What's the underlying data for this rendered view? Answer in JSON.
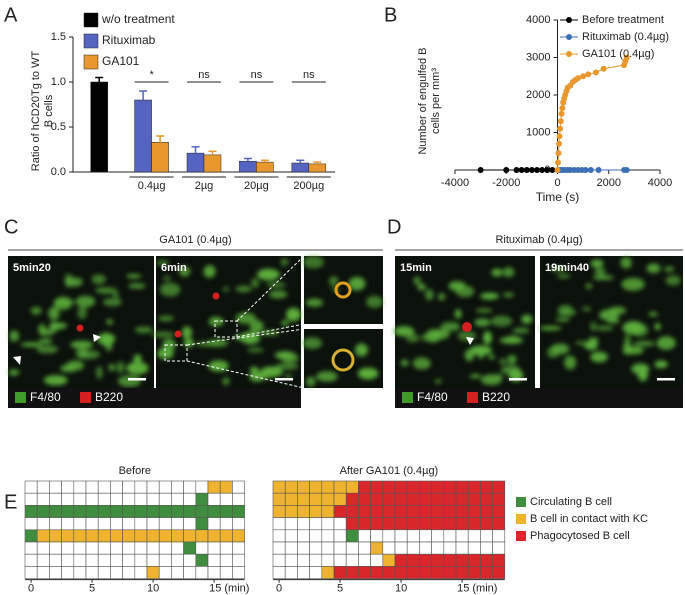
{
  "panel_labels": [
    "A",
    "B",
    "C",
    "D",
    "E"
  ],
  "chart_data": [
    {
      "type": "bar",
      "y_label": "Ratio of hCD20Tg to WT B cells",
      "categories": [
        null,
        "0.4µg",
        "2µg",
        "20µg",
        "200µg"
      ],
      "series": [
        {
          "name": "w/o treatment",
          "color": "#000000",
          "values": [
            1.0,
            null,
            null,
            null,
            null
          ],
          "errors": [
            0.05,
            null,
            null,
            null,
            null
          ]
        },
        {
          "name": "Rituximab",
          "color": "#5563c1",
          "values": [
            null,
            0.8,
            0.21,
            0.12,
            0.1
          ],
          "errors": [
            null,
            0.1,
            0.07,
            0.03,
            0.03
          ]
        },
        {
          "name": "GA101",
          "color": "#e8982e",
          "values": [
            null,
            0.33,
            0.19,
            0.11,
            0.09
          ],
          "errors": [
            null,
            0.07,
            0.04,
            0.02,
            0.02
          ]
        }
      ],
      "significance": [
        null,
        "*",
        "ns",
        "ns",
        "ns"
      ],
      "ylim": [
        0,
        1.5
      ],
      "yticks": [
        {
          "value": 0,
          "label": "0.0"
        },
        {
          "value": 0.5,
          "label": "0.5"
        },
        {
          "value": 1,
          "label": "1.0"
        },
        {
          "value": 1.5,
          "label": "1.5"
        }
      ],
      "legend": "top-left"
    },
    {
      "type": "scatter",
      "x_label": "Time (s)",
      "y_label": "Number of engulfed B cells per mm³",
      "series": [
        {
          "name": "Before treatment",
          "color": "#000000",
          "x": [
            -3000,
            -2000,
            -1600,
            -1400,
            -1200,
            -1000,
            -800,
            -600,
            -400,
            -200
          ],
          "values": [
            0,
            0,
            0,
            0,
            0,
            0,
            0,
            0,
            0,
            0
          ]
        },
        {
          "name": "Rituximab (0.4µg)",
          "color": "#3d6fb6",
          "x": [
            50,
            120,
            200,
            300,
            400,
            500,
            650,
            800,
            950,
            1100,
            1300,
            1600,
            2600,
            2700
          ],
          "values": [
            0,
            0,
            0,
            0,
            0,
            0,
            0,
            0,
            0,
            0,
            0,
            0,
            0,
            0
          ]
        },
        {
          "name": "GA101 (0.4µg)",
          "color": "#e8982e",
          "x": [
            0,
            20,
            40,
            60,
            80,
            100,
            130,
            160,
            190,
            220,
            260,
            300,
            350,
            400,
            500,
            600,
            700,
            800,
            1000,
            1200,
            1500,
            1800,
            2600,
            2650,
            2700
          ],
          "values": [
            0,
            200,
            450,
            700,
            900,
            1100,
            1300,
            1500,
            1650,
            1800,
            1900,
            2000,
            2100,
            2200,
            2250,
            2350,
            2400,
            2450,
            2500,
            2550,
            2600,
            2700,
            2800,
            2900,
            3000
          ]
        }
      ],
      "xlim": [
        -4000,
        4000
      ],
      "xticks": [
        -4000,
        -2000,
        0,
        2000,
        4000
      ],
      "ylim": [
        0,
        4000
      ],
      "yticks": [
        0,
        1000,
        2000,
        3000,
        4000
      ],
      "lines": true,
      "legend": "top-right"
    },
    {
      "type": "heatmap",
      "title": "Before",
      "cells": [
        [
          0,
          0,
          0,
          0,
          0,
          0,
          0,
          0,
          0,
          0,
          0,
          0,
          0,
          0,
          0,
          2,
          2,
          0
        ],
        [
          0,
          0,
          0,
          0,
          0,
          0,
          0,
          0,
          0,
          0,
          0,
          0,
          0,
          0,
          1,
          0,
          0,
          0
        ],
        [
          1,
          1,
          1,
          1,
          1,
          1,
          1,
          1,
          1,
          1,
          1,
          1,
          1,
          1,
          1,
          1,
          1,
          1
        ],
        [
          0,
          0,
          0,
          0,
          0,
          0,
          0,
          0,
          0,
          0,
          0,
          0,
          0,
          0,
          1,
          0,
          0,
          0
        ],
        [
          1,
          2,
          2,
          2,
          2,
          2,
          2,
          2,
          2,
          2,
          2,
          2,
          2,
          2,
          2,
          2,
          2,
          2
        ],
        [
          0,
          0,
          0,
          0,
          0,
          0,
          0,
          0,
          0,
          0,
          0,
          0,
          0,
          1,
          0,
          0,
          0,
          0
        ],
        [
          0,
          0,
          0,
          0,
          0,
          0,
          0,
          0,
          0,
          0,
          0,
          0,
          0,
          0,
          1,
          0,
          0,
          0
        ],
        [
          0,
          0,
          0,
          0,
          0,
          0,
          0,
          0,
          0,
          0,
          2,
          0,
          0,
          0,
          0,
          0,
          0,
          0
        ]
      ],
      "xticks": [
        0,
        5,
        10,
        {
          "value": 15,
          "label": "15 (min)"
        }
      ]
    },
    {
      "type": "heatmap",
      "title": "After GA101 (0.4µg)",
      "cells": [
        [
          2,
          2,
          2,
          2,
          2,
          2,
          2,
          3,
          3,
          3,
          3,
          3,
          3,
          3,
          3,
          3,
          3,
          3,
          3
        ],
        [
          2,
          2,
          2,
          2,
          2,
          2,
          3,
          3,
          3,
          3,
          3,
          3,
          3,
          3,
          3,
          3,
          3,
          3,
          3
        ],
        [
          2,
          2,
          2,
          2,
          2,
          3,
          3,
          3,
          3,
          3,
          3,
          3,
          3,
          3,
          3,
          3,
          3,
          3,
          3
        ],
        [
          0,
          0,
          0,
          0,
          0,
          0,
          3,
          3,
          3,
          3,
          3,
          3,
          3,
          3,
          3,
          3,
          3,
          3,
          3
        ],
        [
          0,
          0,
          0,
          0,
          0,
          0,
          1,
          0,
          0,
          0,
          0,
          0,
          0,
          0,
          0,
          0,
          0,
          0,
          0
        ],
        [
          0,
          0,
          0,
          0,
          0,
          0,
          0,
          0,
          2,
          0,
          0,
          0,
          0,
          0,
          0,
          0,
          0,
          0,
          0
        ],
        [
          0,
          0,
          0,
          0,
          0,
          0,
          0,
          0,
          0,
          2,
          3,
          3,
          3,
          3,
          3,
          3,
          3,
          3,
          3
        ],
        [
          0,
          0,
          0,
          0,
          2,
          3,
          3,
          3,
          3,
          3,
          3,
          3,
          3,
          3,
          3,
          3,
          3,
          3,
          3
        ]
      ],
      "xticks": [
        0,
        5,
        10,
        {
          "value": 15,
          "label": "15 (min)"
        }
      ]
    }
  ],
  "cell_states": [
    {
      "name": "Circulating B cell",
      "color": "#3f8e3f"
    },
    {
      "name": "B cell in contact with KC",
      "color": "#f0b330"
    },
    {
      "name": "Phagocytosed B cell",
      "color": "#d8262a"
    }
  ],
  "images": {
    "C": {
      "title": "GA101 (0.4µg)",
      "frames": [
        "5min20",
        "6min"
      ],
      "legend": [
        "F4/80",
        "B220"
      ]
    },
    "D": {
      "title": "Rituximab (0.4µg)",
      "frames": [
        "15min",
        "19min40"
      ],
      "legend": [
        "F4/80",
        "B220"
      ]
    }
  }
}
